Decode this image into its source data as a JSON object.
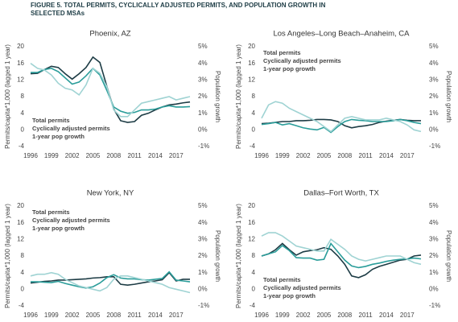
{
  "title_lines": [
    "FIGURE 5. TOTAL PERMITS, CYCLICALLY ADJUSTED PERMITS, AND POPULATION GROWTH IN",
    "SELECTED MSAs"
  ],
  "chart_data": [
    {
      "type": "line",
      "title": "Phoenix, AZ",
      "ylabel": "Permits/capita*1,000 (lagged 1 year)",
      "y2label": "Population growth",
      "x": [
        1996,
        1997,
        1998,
        1999,
        2000,
        2001,
        2002,
        2003,
        2004,
        2005,
        2006,
        2007,
        2008,
        2009,
        2010,
        2011,
        2012,
        2013,
        2014,
        2015,
        2016,
        2017,
        2018,
        2019
      ],
      "series": [
        {
          "name": "Total permits",
          "color": "#1d3c45",
          "values": [
            13.5,
            13.6,
            14.5,
            15.3,
            15.0,
            13.5,
            12.2,
            13.5,
            15.0,
            17.5,
            16.2,
            10.5,
            5,
            2.2,
            1.8,
            2.0,
            3.5,
            4,
            4.8,
            5.5,
            6,
            6.2,
            6.5,
            6.7
          ]
        },
        {
          "name": "Cyclically adjusted permits",
          "color": "#2a9d9a",
          "values": [
            13.8,
            13.8,
            14.5,
            14.8,
            14,
            12.5,
            11,
            11.5,
            13,
            14.8,
            13.2,
            9.5,
            5.5,
            4.5,
            4.0,
            4.2,
            4.8,
            4.8,
            5,
            5.5,
            5.8,
            5.5,
            5.5,
            5.6
          ]
        },
        {
          "name": "1-year pop growth",
          "color": "#9fd3d3",
          "axis": "y2",
          "values": [
            4.0,
            3.7,
            3.6,
            3.3,
            2.8,
            2.5,
            2.4,
            2.1,
            2.7,
            3.7,
            3.4,
            2.6,
            1.2,
            0.8,
            0.8,
            1.2,
            1.6,
            1.7,
            1.8,
            1.9,
            2.0,
            1.8,
            1.9,
            2.0
          ]
        }
      ],
      "xlim": [
        1996,
        2019
      ],
      "xticks": [
        1996,
        1999,
        2002,
        2005,
        2008,
        2011,
        2014,
        2017
      ],
      "ylim": [
        -4,
        20
      ],
      "yticks": [
        -4,
        0,
        4,
        8,
        12,
        16,
        20
      ],
      "y2lim": [
        -1,
        5
      ],
      "y2ticks": [
        {
          "value": -1,
          "label": "-1%"
        },
        {
          "value": 0,
          "label": "0%"
        },
        {
          "value": 1,
          "label": "1%"
        },
        {
          "value": 2,
          "label": "2%"
        },
        {
          "value": 3,
          "label": "3%"
        },
        {
          "value": 4,
          "label": "4%"
        },
        {
          "value": 5,
          "label": "5%"
        }
      ],
      "legend": "lower left"
    },
    {
      "type": "line",
      "title": "Los Angeles–Long Beach–Anaheim, CA",
      "ylabel": "Permits/capita*1,000 (lagged 1 year)",
      "y2label": "Population growth",
      "x": [
        1996,
        1997,
        1998,
        1999,
        2000,
        2001,
        2002,
        2003,
        2004,
        2005,
        2006,
        2007,
        2008,
        2009,
        2010,
        2011,
        2012,
        2013,
        2014,
        2015,
        2016,
        2017,
        2018,
        2019
      ],
      "series": [
        {
          "name": "Total permits",
          "color": "#1d3c45",
          "values": [
            1.5,
            1.6,
            1.8,
            2.0,
            2.0,
            2.2,
            2.2,
            2.3,
            2.5,
            2.5,
            2.4,
            2.0,
            1.0,
            0.5,
            0.8,
            1.0,
            1.3,
            1.8,
            2.1,
            2.3,
            2.5,
            2.3,
            2.2,
            2.2
          ]
        },
        {
          "name": "Cyclically adjusted permits",
          "color": "#2a9d9a",
          "values": [
            1.3,
            1.5,
            1.8,
            1.2,
            1.5,
            1.0,
            0.5,
            0.2,
            0,
            0.6,
            -0.6,
            0.8,
            2.0,
            2.5,
            2.3,
            2.2,
            2.0,
            2.0,
            2.0,
            2.2,
            2.5,
            2.2,
            1.8,
            1.5
          ]
        },
        {
          "name": "1-year pop growth",
          "color": "#9fd3d3",
          "axis": "y2",
          "values": [
            0.7,
            1.5,
            1.7,
            1.6,
            1.3,
            1.1,
            0.9,
            0.7,
            0.5,
            0.2,
            -0.1,
            0.3,
            0.7,
            0.8,
            0.7,
            0.6,
            0.6,
            0.6,
            0.7,
            0.6,
            0.5,
            0.3,
            0.0,
            -0.1
          ]
        }
      ],
      "xlim": [
        1996,
        2019
      ],
      "xticks": [
        1996,
        1999,
        2002,
        2005,
        2008,
        2011,
        2014,
        2017
      ],
      "ylim": [
        -4,
        20
      ],
      "yticks": [
        -4,
        0,
        4,
        8,
        12,
        16,
        20
      ],
      "y2lim": [
        -1,
        5
      ],
      "y2ticks": [
        {
          "value": -1,
          "label": "-1%"
        },
        {
          "value": 0,
          "label": "0%"
        },
        {
          "value": 1,
          "label": "1%"
        },
        {
          "value": 2,
          "label": "2%"
        },
        {
          "value": 3,
          "label": "3%"
        },
        {
          "value": 4,
          "label": "4%"
        },
        {
          "value": 5,
          "label": "5%"
        }
      ],
      "legend": "upper left"
    },
    {
      "type": "line",
      "title": "New York, NY",
      "ylabel": "Permits/capita*1,000 (lagged 1 year)",
      "y2label": "Population growth",
      "x": [
        1996,
        1997,
        1998,
        1999,
        2000,
        2001,
        2002,
        2003,
        2004,
        2005,
        2006,
        2007,
        2008,
        2009,
        2010,
        2011,
        2012,
        2013,
        2014,
        2015,
        2016,
        2017,
        2018,
        2019
      ],
      "series": [
        {
          "name": "Total permits",
          "color": "#1d3c45",
          "values": [
            1.5,
            1.7,
            1.9,
            2.0,
            2.2,
            2.2,
            2.3,
            2.4,
            2.5,
            2.7,
            2.8,
            3.0,
            3.0,
            1.2,
            1.0,
            1.2,
            1.5,
            1.8,
            2.0,
            2.3,
            4.0,
            2.0,
            2.4,
            2.4
          ]
        },
        {
          "name": "Cyclically adjusted permits",
          "color": "#2a9d9a",
          "values": [
            1.8,
            1.8,
            1.7,
            1.6,
            1.9,
            1.4,
            1.0,
            0.6,
            0.3,
            0.6,
            1.5,
            2.8,
            3.5,
            2.7,
            2.5,
            2.5,
            2.3,
            2.2,
            2.4,
            2.6,
            4.2,
            2.2,
            2.0,
            1.8
          ]
        },
        {
          "name": "1-year pop growth",
          "color": "#9fd3d3",
          "axis": "y2",
          "values": [
            0.8,
            0.9,
            0.9,
            1.0,
            0.9,
            0.6,
            0.4,
            0.2,
            0.1,
            0.0,
            -0.1,
            0.1,
            0.6,
            0.8,
            0.8,
            0.7,
            0.6,
            0.5,
            0.4,
            0.3,
            0.1,
            0.0,
            -0.1,
            -0.2
          ]
        }
      ],
      "xlim": [
        1996,
        2019
      ],
      "xticks": [
        1996,
        1999,
        2002,
        2005,
        2008,
        2011,
        2014,
        2017
      ],
      "ylim": [
        -4,
        20
      ],
      "yticks": [
        -4,
        0,
        4,
        8,
        12,
        16,
        20
      ],
      "y2lim": [
        -1,
        5
      ],
      "y2ticks": [
        {
          "value": -1,
          "label": "-1%"
        },
        {
          "value": 0,
          "label": "0%"
        },
        {
          "value": 1,
          "label": "1%"
        },
        {
          "value": 2,
          "label": "2%"
        },
        {
          "value": 3,
          "label": "3%"
        },
        {
          "value": 4,
          "label": "4%"
        },
        {
          "value": 5,
          "label": "5%"
        }
      ],
      "legend": "upper left"
    },
    {
      "type": "line",
      "title": "Dallas–Fort Worth, TX",
      "ylabel": "Permits/capita*1,000 (lagged 1 year)",
      "y2label": "Population growth",
      "x": [
        1996,
        1997,
        1998,
        1999,
        2000,
        2001,
        2002,
        2003,
        2004,
        2005,
        2006,
        2007,
        2008,
        2009,
        2010,
        2011,
        2012,
        2013,
        2014,
        2015,
        2016,
        2017,
        2018,
        2019
      ],
      "series": [
        {
          "name": "Total permits",
          "color": "#1d3c45",
          "values": [
            8,
            8.5,
            9.5,
            11,
            9.5,
            8.2,
            9,
            9.3,
            9.5,
            10,
            9.6,
            8,
            6,
            3.2,
            2.8,
            3.5,
            4.8,
            5.5,
            6,
            6.5,
            7,
            7.2,
            8,
            8.2
          ]
        },
        {
          "name": "Cyclically adjusted permits",
          "color": "#2a9d9a",
          "values": [
            8,
            8.5,
            9,
            10.5,
            9.3,
            7.6,
            7.5,
            7.5,
            7.0,
            7.2,
            11.0,
            9.0,
            7.0,
            5.6,
            5.2,
            5.5,
            6.0,
            6.3,
            6.7,
            7,
            7.2,
            7.3,
            7.5,
            7.3
          ]
        },
        {
          "name": "1-year pop growth",
          "color": "#9fd3d3",
          "axis": "y2",
          "values": [
            3.2,
            3.4,
            3.4,
            3.2,
            2.9,
            2.6,
            2.5,
            2.4,
            2.3,
            2.3,
            3.0,
            2.7,
            2.4,
            2.0,
            1.8,
            1.7,
            1.8,
            1.9,
            2.0,
            2.0,
            2.0,
            1.8,
            1.6,
            1.5
          ]
        }
      ],
      "xlim": [
        1996,
        2019
      ],
      "xticks": [
        1996,
        1999,
        2002,
        2005,
        2008,
        2011,
        2014,
        2017
      ],
      "ylim": [
        -4,
        20
      ],
      "yticks": [
        -4,
        0,
        4,
        8,
        12,
        16,
        20
      ],
      "y2lim": [
        -1,
        5
      ],
      "y2ticks": [
        {
          "value": -1,
          "label": "-1%"
        },
        {
          "value": 0,
          "label": "0%"
        },
        {
          "value": 1,
          "label": "1%"
        },
        {
          "value": 2,
          "label": "2%"
        },
        {
          "value": 3,
          "label": "3%"
        },
        {
          "value": 4,
          "label": "4%"
        },
        {
          "value": 5,
          "label": "5%"
        }
      ],
      "legend": "lower left"
    }
  ]
}
